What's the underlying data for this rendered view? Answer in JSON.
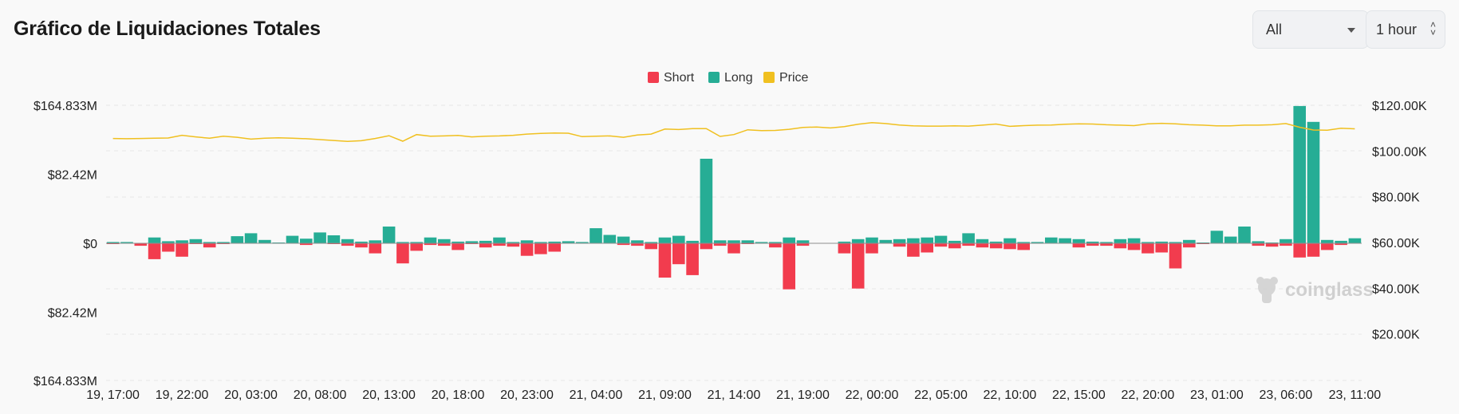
{
  "page": {
    "title": "Gráfico de Liquidaciones Totales"
  },
  "controls": {
    "range_value": "All",
    "interval_value": "1 hour"
  },
  "watermark": {
    "text": "coinglass"
  },
  "chart_data": {
    "type": "bar",
    "colors": {
      "short": "#f23c4e",
      "long": "#26ad95",
      "price": "#f0c020"
    },
    "legend": [
      {
        "name": "Short",
        "color": "#f23c4e"
      },
      {
        "name": "Long",
        "color": "#26ad95"
      },
      {
        "name": "Price",
        "color": "#f0c020"
      }
    ],
    "legend_position": "top-center",
    "grid": "horizontal-dashed",
    "y_left": {
      "ticks": [
        "$164.833M",
        "$82.42M",
        "$0",
        "$82.42M",
        "$164.833M"
      ],
      "range_millions": [
        -164.833,
        164.833
      ]
    },
    "y_right": {
      "ticks": [
        "$120.00K",
        "$100.00K",
        "$80.00K",
        "$60.00K",
        "$40.00K",
        "$20.00K"
      ],
      "range_thousands": [
        0,
        120
      ]
    },
    "x_tick_labels": [
      "19, 17:00",
      "19, 22:00",
      "20, 03:00",
      "20, 08:00",
      "20, 13:00",
      "20, 18:00",
      "20, 23:00",
      "21, 04:00",
      "21, 09:00",
      "21, 14:00",
      "21, 19:00",
      "22, 00:00",
      "22, 05:00",
      "22, 10:00",
      "22, 15:00",
      "22, 20:00",
      "23, 01:00",
      "23, 06:00",
      "23, 11:00"
    ],
    "categories": [
      "19, 17:00",
      "19, 18:00",
      "19, 19:00",
      "19, 20:00",
      "19, 21:00",
      "19, 22:00",
      "19, 23:00",
      "20, 00:00",
      "20, 01:00",
      "20, 02:00",
      "20, 03:00",
      "20, 04:00",
      "20, 05:00",
      "20, 06:00",
      "20, 07:00",
      "20, 08:00",
      "20, 09:00",
      "20, 10:00",
      "20, 11:00",
      "20, 12:00",
      "20, 13:00",
      "20, 14:00",
      "20, 15:00",
      "20, 16:00",
      "20, 17:00",
      "20, 18:00",
      "20, 19:00",
      "20, 20:00",
      "20, 21:00",
      "20, 22:00",
      "20, 23:00",
      "21, 00:00",
      "21, 01:00",
      "21, 02:00",
      "21, 03:00",
      "21, 04:00",
      "21, 05:00",
      "21, 06:00",
      "21, 07:00",
      "21, 08:00",
      "21, 09:00",
      "21, 10:00",
      "21, 11:00",
      "21, 12:00",
      "21, 13:00",
      "21, 14:00",
      "21, 15:00",
      "21, 16:00",
      "21, 17:00",
      "21, 18:00",
      "21, 19:00",
      "21, 20:00",
      "21, 21:00",
      "21, 22:00",
      "21, 23:00",
      "22, 00:00",
      "22, 01:00",
      "22, 02:00",
      "22, 03:00",
      "22, 04:00",
      "22, 05:00",
      "22, 06:00",
      "22, 07:00",
      "22, 08:00",
      "22, 09:00",
      "22, 10:00",
      "22, 11:00",
      "22, 12:00",
      "22, 13:00",
      "22, 14:00",
      "22, 15:00",
      "22, 16:00",
      "22, 17:00",
      "22, 18:00",
      "22, 19:00",
      "22, 20:00",
      "22, 21:00",
      "22, 22:00",
      "22, 23:00",
      "23, 00:00",
      "23, 01:00",
      "23, 02:00",
      "23, 03:00",
      "23, 04:00",
      "23, 05:00",
      "23, 06:00",
      "23, 07:00",
      "23, 08:00",
      "23, 09:00",
      "23, 10:00",
      "23, 11:00"
    ],
    "series": [
      {
        "name": "Long",
        "unit": "USD millions",
        "values": [
          1.5,
          1.5,
          0,
          7,
          2.5,
          3.5,
          5,
          1.5,
          1.5,
          8.5,
          12,
          4,
          1,
          9,
          5.5,
          13,
          9.5,
          5,
          2,
          3.5,
          20,
          1.5,
          1.5,
          7,
          5,
          2,
          2.5,
          3,
          7,
          1.5,
          3.5,
          1.5,
          2,
          2.5,
          1.5,
          18,
          10,
          8,
          3.5,
          1.5,
          7,
          9,
          3,
          101,
          3.5,
          3.5,
          3.5,
          1.5,
          1.5,
          7,
          3.5,
          0,
          0,
          2,
          5,
          7,
          4,
          5,
          6,
          7,
          9,
          3,
          12,
          5,
          2,
          6,
          1.5,
          1.5,
          7,
          6,
          5,
          2,
          1.5,
          5,
          6,
          1.5,
          2,
          1.5,
          4,
          1,
          15,
          8,
          20,
          2.5,
          1,
          5,
          164,
          145,
          4,
          3,
          6
        ]
      },
      {
        "name": "Short",
        "unit": "USD millions",
        "values": [
          1,
          0,
          3,
          19,
          10,
          16,
          1,
          5,
          1,
          0,
          0,
          0,
          0,
          0,
          2,
          0,
          1,
          3,
          5,
          12,
          0,
          24,
          9,
          2,
          3,
          8,
          1,
          5,
          3,
          4,
          15,
          13,
          10,
          0,
          0,
          0,
          0,
          2,
          3,
          7,
          41,
          25,
          38,
          7,
          3,
          12,
          1,
          0,
          5,
          55,
          3,
          0,
          0,
          12,
          54,
          12,
          0,
          4,
          16,
          11,
          4,
          6,
          3,
          5,
          6,
          7,
          8,
          0,
          0,
          0,
          5,
          3,
          3,
          6,
          8,
          12,
          11,
          30,
          5,
          1,
          0,
          0,
          0,
          3,
          4,
          3,
          17,
          16,
          8,
          2,
          0
        ]
      },
      {
        "name": "Price",
        "unit": "USD thousands",
        "values": [
          105.5,
          105.4,
          105.5,
          105.6,
          105.7,
          106.9,
          106.2,
          105.6,
          106.5,
          106.0,
          105.2,
          105.6,
          105.8,
          105.6,
          105.4,
          105.0,
          104.6,
          104.2,
          104.5,
          105.5,
          106.7,
          104.3,
          107.2,
          106.5,
          106.6,
          106.8,
          106.2,
          106.5,
          106.6,
          106.9,
          107.4,
          107.7,
          107.9,
          107.8,
          106.3,
          106.5,
          106.6,
          106.0,
          107.0,
          107.4,
          109.6,
          109.4,
          109.8,
          109.8,
          106.4,
          107.2,
          109.3,
          108.9,
          109.0,
          109.5,
          110.3,
          110.5,
          110.1,
          110.7,
          111.7,
          112.4,
          112.0,
          111.4,
          111.0,
          110.9,
          110.9,
          111.0,
          110.9,
          111.3,
          111.8,
          110.8,
          111.1,
          111.3,
          111.4,
          111.7,
          111.9,
          111.8,
          111.5,
          111.3,
          111.1,
          111.9,
          112.1,
          111.9,
          111.5,
          111.3,
          111.0,
          111.0,
          111.3,
          111.3,
          111.5,
          112.0,
          110.4,
          109.2,
          109.1,
          110.0,
          109.7
        ]
      }
    ]
  }
}
